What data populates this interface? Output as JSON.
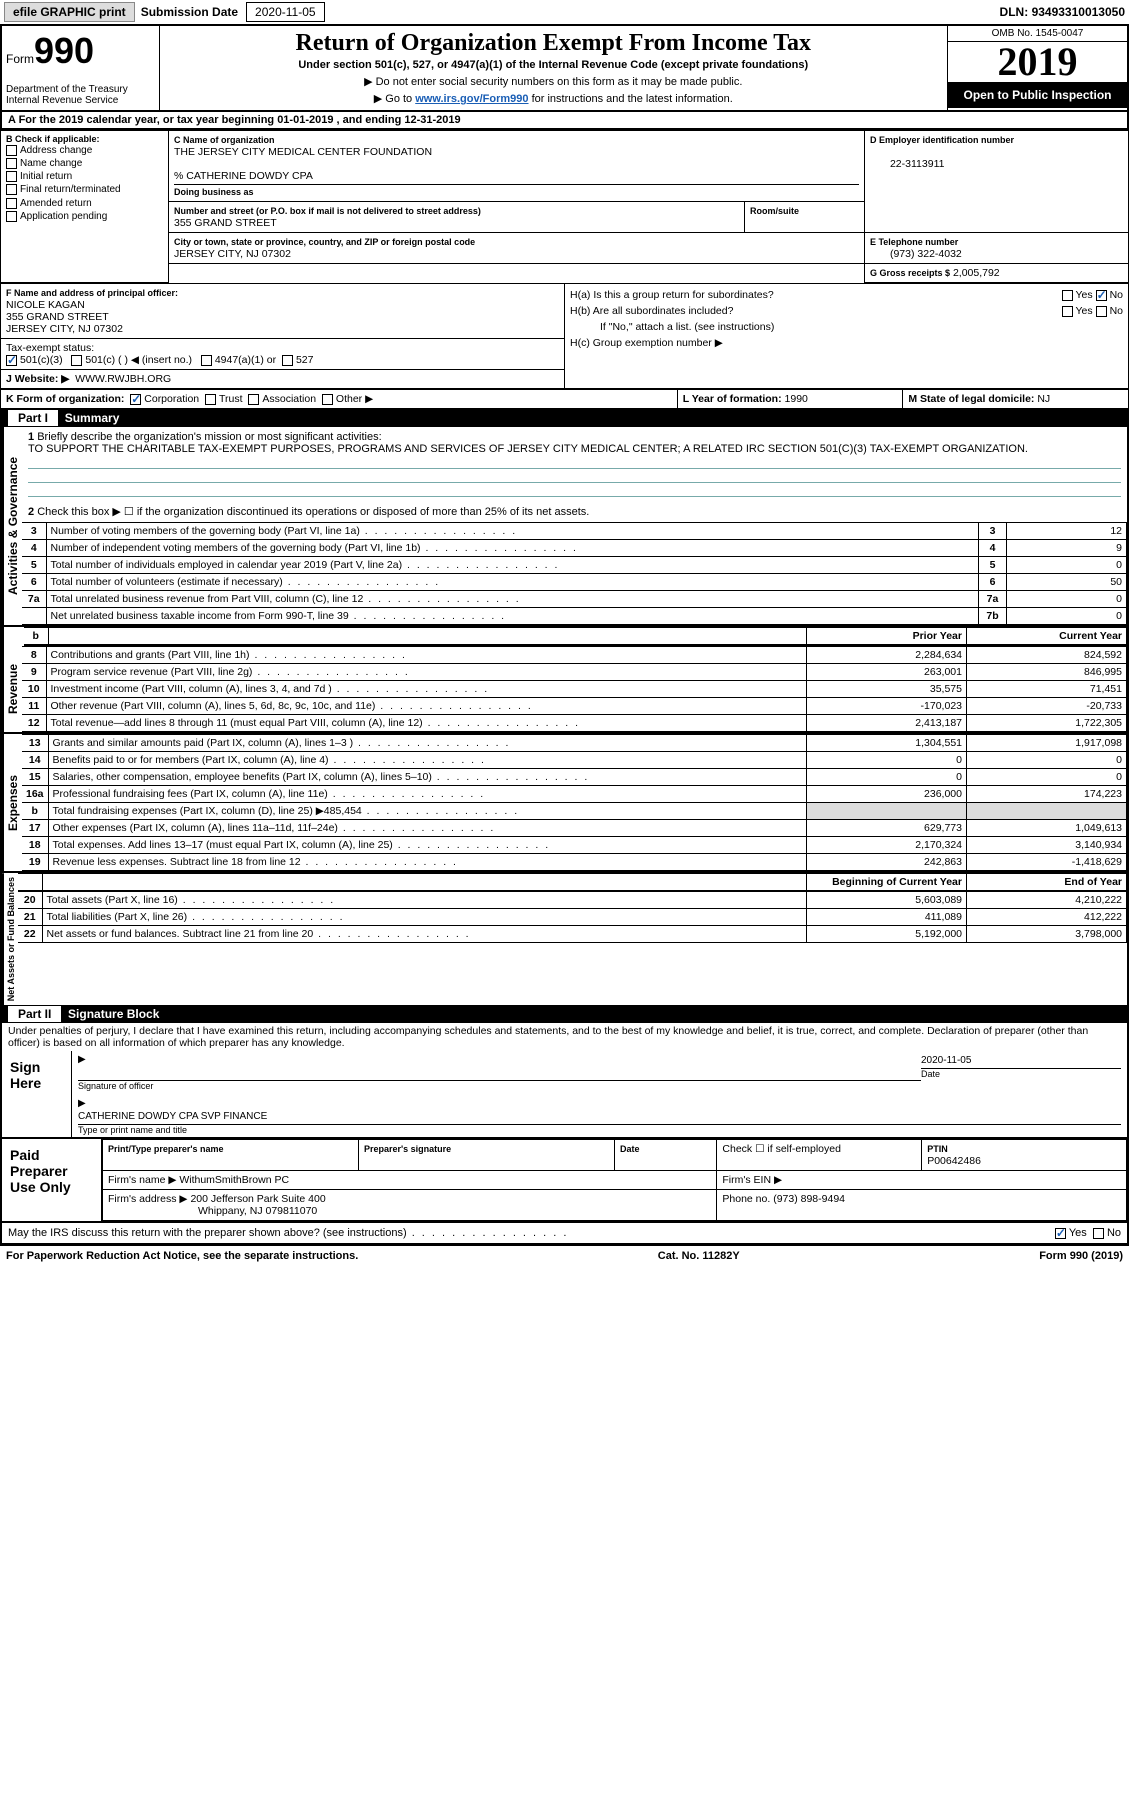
{
  "topbar": {
    "efile": "efile GRAPHIC print",
    "submission_lbl": "Submission Date",
    "submission_date": "2020-11-05",
    "dln_lbl": "DLN:",
    "dln": "93493310013050"
  },
  "header": {
    "form_prefix": "Form",
    "form_num": "990",
    "dept": "Department of the Treasury\nInternal Revenue Service",
    "title": "Return of Organization Exempt From Income Tax",
    "sub": "Under section 501(c), 527, or 4947(a)(1) of the Internal Revenue Code (except private foundations)",
    "note1": "▶ Do not enter social security numbers on this form as it may be made public.",
    "note2_pre": "▶ Go to ",
    "note2_link": "www.irs.gov/Form990",
    "note2_post": " for instructions and the latest information.",
    "omb": "OMB No. 1545-0047",
    "year": "2019",
    "pubins": "Open to Public Inspection"
  },
  "rowA": "A For the 2019 calendar year, or tax year beginning 01-01-2019   , and ending 12-31-2019",
  "boxB": {
    "hdr": "B Check if applicable:",
    "items": [
      "Address change",
      "Name change",
      "Initial return",
      "Final return/terminated",
      "Amended return",
      "Application pending"
    ]
  },
  "boxC": {
    "lbl": "C Name of organization",
    "org": "THE JERSEY CITY MEDICAL CENTER FOUNDATION",
    "care": "% CATHERINE DOWDY CPA",
    "dba_lbl": "Doing business as",
    "addr_lbl": "Number and street (or P.O. box if mail is not delivered to street address)",
    "room_lbl": "Room/suite",
    "addr": "355 GRAND STREET",
    "city_lbl": "City or town, state or province, country, and ZIP or foreign postal code",
    "city": "JERSEY CITY, NJ  07302"
  },
  "boxD": {
    "lbl": "D Employer identification number",
    "val": "22-3113911"
  },
  "boxE": {
    "lbl": "E Telephone number",
    "val": "(973) 322-4032"
  },
  "boxG": {
    "lbl": "G Gross receipts $",
    "val": "2,005,792"
  },
  "boxF": {
    "lbl": "F  Name and address of principal officer:",
    "name": "NICOLE KAGAN",
    "addr1": "355 GRAND STREET",
    "addr2": "JERSEY CITY, NJ  07302"
  },
  "boxH": {
    "a": "H(a)  Is this a group return for subordinates?",
    "b": "H(b)  Are all subordinates included?",
    "b_note": "If \"No,\" attach a list. (see instructions)",
    "c": "H(c)  Group exemption number ▶",
    "yes": "Yes",
    "no": "No"
  },
  "taxexempt": {
    "lbl": "Tax-exempt status:",
    "o1": "501(c)(3)",
    "o2": "501(c) (  ) ◀ (insert no.)",
    "o3": "4947(a)(1) or",
    "o4": "527"
  },
  "rowJ": {
    "lbl": "J Website: ▶",
    "val": "WWW.RWJBH.ORG"
  },
  "rowK": {
    "lbl": "K Form of organization:",
    "o1": "Corporation",
    "o2": "Trust",
    "o3": "Association",
    "o4": "Other ▶"
  },
  "rowL": {
    "lbl": "L Year of formation:",
    "val": "1990"
  },
  "rowM": {
    "lbl": "M State of legal domicile:",
    "val": "NJ"
  },
  "part1": {
    "num": "Part I",
    "title": "Summary"
  },
  "activities": {
    "label": "Activities & Governance",
    "l1": "Briefly describe the organization's mission or most significant activities:",
    "l1_text": "TO SUPPORT THE CHARITABLE TAX-EXEMPT PURPOSES, PROGRAMS AND SERVICES OF JERSEY CITY MEDICAL CENTER; A RELATED IRC SECTION 501(C)(3) TAX-EXEMPT ORGANIZATION.",
    "l2": "Check this box ▶ ☐ if the organization discontinued its operations or disposed of more than 25% of its net assets.",
    "rows": [
      {
        "n": "3",
        "d": "Number of voting members of the governing body (Part VI, line 1a)",
        "b": "3",
        "v": "12"
      },
      {
        "n": "4",
        "d": "Number of independent voting members of the governing body (Part VI, line 1b)",
        "b": "4",
        "v": "9"
      },
      {
        "n": "5",
        "d": "Total number of individuals employed in calendar year 2019 (Part V, line 2a)",
        "b": "5",
        "v": "0"
      },
      {
        "n": "6",
        "d": "Total number of volunteers (estimate if necessary)",
        "b": "6",
        "v": "50"
      },
      {
        "n": "7a",
        "d": "Total unrelated business revenue from Part VIII, column (C), line 12",
        "b": "7a",
        "v": "0"
      },
      {
        "n": "",
        "d": "Net unrelated business taxable income from Form 990-T, line 39",
        "b": "7b",
        "v": "0"
      }
    ]
  },
  "yearcols": {
    "prior": "Prior Year",
    "current": "Current Year"
  },
  "revenue": {
    "label": "Revenue",
    "rows": [
      {
        "n": "8",
        "d": "Contributions and grants (Part VIII, line 1h)",
        "p": "2,284,634",
        "c": "824,592"
      },
      {
        "n": "9",
        "d": "Program service revenue (Part VIII, line 2g)",
        "p": "263,001",
        "c": "846,995"
      },
      {
        "n": "10",
        "d": "Investment income (Part VIII, column (A), lines 3, 4, and 7d )",
        "p": "35,575",
        "c": "71,451"
      },
      {
        "n": "11",
        "d": "Other revenue (Part VIII, column (A), lines 5, 6d, 8c, 9c, 10c, and 11e)",
        "p": "-170,023",
        "c": "-20,733"
      },
      {
        "n": "12",
        "d": "Total revenue—add lines 8 through 11 (must equal Part VIII, column (A), line 12)",
        "p": "2,413,187",
        "c": "1,722,305"
      }
    ]
  },
  "expenses": {
    "label": "Expenses",
    "rows": [
      {
        "n": "13",
        "d": "Grants and similar amounts paid (Part IX, column (A), lines 1–3 )",
        "p": "1,304,551",
        "c": "1,917,098"
      },
      {
        "n": "14",
        "d": "Benefits paid to or for members (Part IX, column (A), line 4)",
        "p": "0",
        "c": "0"
      },
      {
        "n": "15",
        "d": "Salaries, other compensation, employee benefits (Part IX, column (A), lines 5–10)",
        "p": "0",
        "c": "0"
      },
      {
        "n": "16a",
        "d": "Professional fundraising fees (Part IX, column (A), line 11e)",
        "p": "236,000",
        "c": "174,223"
      },
      {
        "n": "b",
        "d": "Total fundraising expenses (Part IX, column (D), line 25) ▶485,454",
        "p": "shade",
        "c": "shade"
      },
      {
        "n": "17",
        "d": "Other expenses (Part IX, column (A), lines 11a–11d, 11f–24e)",
        "p": "629,773",
        "c": "1,049,613"
      },
      {
        "n": "18",
        "d": "Total expenses. Add lines 13–17 (must equal Part IX, column (A), line 25)",
        "p": "2,170,324",
        "c": "3,140,934"
      },
      {
        "n": "19",
        "d": "Revenue less expenses. Subtract line 18 from line 12",
        "p": "242,863",
        "c": "-1,418,629"
      }
    ]
  },
  "balcols": {
    "beg": "Beginning of Current Year",
    "end": "End of Year"
  },
  "netassets": {
    "label": "Net Assets or Fund Balances",
    "rows": [
      {
        "n": "20",
        "d": "Total assets (Part X, line 16)",
        "p": "5,603,089",
        "c": "4,210,222"
      },
      {
        "n": "21",
        "d": "Total liabilities (Part X, line 26)",
        "p": "411,089",
        "c": "412,222"
      },
      {
        "n": "22",
        "d": "Net assets or fund balances. Subtract line 21 from line 20",
        "p": "5,192,000",
        "c": "3,798,000"
      }
    ]
  },
  "part2": {
    "num": "Part II",
    "title": "Signature Block"
  },
  "sig": {
    "decl": "Under penalties of perjury, I declare that I have examined this return, including accompanying schedules and statements, and to the best of my knowledge and belief, it is true, correct, and complete. Declaration of preparer (other than officer) is based on all information of which preparer has any knowledge.",
    "sign_here": "Sign Here",
    "sig_officer": "Signature of officer",
    "date_lbl": "Date",
    "date": "2020-11-05",
    "typed": "CATHERINE DOWDY CPA  SVP FINANCE",
    "typed_lbl": "Type or print name and title",
    "paid": "Paid Preparer Use Only",
    "prep_name_lbl": "Print/Type preparer's name",
    "prep_sig_lbl": "Preparer's signature",
    "check_self": "Check ☐ if self-employed",
    "ptin_lbl": "PTIN",
    "ptin": "P00642486",
    "firm_name_lbl": "Firm's name    ▶",
    "firm_name": "WithumSmithBrown PC",
    "firm_ein_lbl": "Firm's EIN ▶",
    "firm_addr_lbl": "Firm's address ▶",
    "firm_addr1": "200 Jefferson Park Suite 400",
    "firm_addr2": "Whippany, NJ  079811070",
    "phone_lbl": "Phone no.",
    "phone": "(973) 898-9494",
    "discuss": "May the IRS discuss this return with the preparer shown above? (see instructions)"
  },
  "footer": {
    "left": "For Paperwork Reduction Act Notice, see the separate instructions.",
    "mid": "Cat. No. 11282Y",
    "right": "Form 990 (2019)"
  }
}
